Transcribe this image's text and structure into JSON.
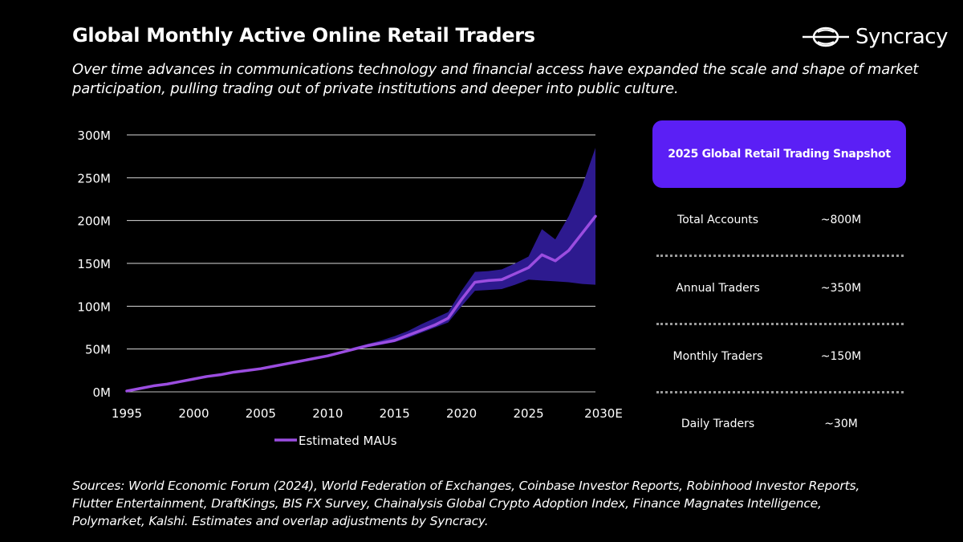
{
  "header": {
    "title": "Global Monthly Active Online Retail Traders",
    "subtitle": "Over time advances in communications technology and financial access have expanded the scale and shape of market participation, pulling trading out of private institutions and deeper into public culture.",
    "logo_text": "Syncracy"
  },
  "snapshot": {
    "title": "2025 Global Retail Trading Snapshot",
    "items": [
      {
        "label": "Total Accounts",
        "value": "~800M"
      },
      {
        "label": "Annual Traders",
        "value": "~350M"
      },
      {
        "label": "Monthly Traders",
        "value": "~150M"
      },
      {
        "label": "Daily Traders",
        "value": "~30M"
      }
    ]
  },
  "sources": "Sources: World Economic Forum (2024), World Federation of Exchanges, Coinbase Investor Reports, Robinhood Investor Reports, Flutter Entertainment, DraftKings, BIS FX Survey, Chainalysis Global Crypto Adoption Index, Finance Magnates Intelligence, Polymarket, Kalshi. Estimates and overlap adjustments by Syncracy.",
  "colors": {
    "background": "#000000",
    "line": "#9b4de0",
    "band": "#2d1a8f",
    "accent": "#5b1ff5",
    "grid": "#d9d9d9"
  },
  "chart_data": {
    "type": "line",
    "title": "",
    "xlabel": "",
    "ylabel": "",
    "x": [
      1995,
      1996,
      1997,
      1998,
      1999,
      2000,
      2001,
      2002,
      2003,
      2004,
      2005,
      2006,
      2007,
      2008,
      2009,
      2010,
      2011,
      2012,
      2013,
      2014,
      2015,
      2016,
      2017,
      2018,
      2019,
      2020,
      2021,
      2022,
      2023,
      2024,
      2025,
      2026,
      2027,
      2028,
      2029,
      2030
    ],
    "x_tick_labels": [
      "1995",
      "2000",
      "2005",
      "2010",
      "2015",
      "2020",
      "2025",
      "2030E"
    ],
    "x_tick_values": [
      1995,
      2000,
      2005,
      2010,
      2015,
      2020,
      2025,
      2030
    ],
    "xlim": [
      1995,
      2030
    ],
    "ylim": [
      0,
      300
    ],
    "y_unit": "millions",
    "y_ticks": [
      0,
      50,
      100,
      150,
      200,
      250,
      300
    ],
    "y_tick_labels": [
      "0M",
      "50M",
      "100M",
      "150M",
      "200M",
      "250M",
      "300M"
    ],
    "grid": true,
    "legend_position": "bottom",
    "series": [
      {
        "name": "Estimated MAUs",
        "values": [
          1,
          4,
          7,
          9,
          12,
          15,
          18,
          20,
          23,
          25,
          27,
          30,
          33,
          36,
          39,
          42,
          46,
          50,
          54,
          57,
          60,
          66,
          72,
          78,
          86,
          108,
          128,
          130,
          131,
          138,
          145,
          160,
          153,
          165,
          185,
          205
        ]
      }
    ],
    "uncertainty_band": {
      "upper": [
        1,
        4,
        7,
        9,
        12,
        15,
        18,
        20,
        23,
        26,
        28,
        31,
        34,
        37,
        40,
        43,
        47,
        52,
        56,
        60,
        65,
        71,
        79,
        86,
        93,
        118,
        140,
        141,
        143,
        150,
        158,
        190,
        178,
        205,
        240,
        285
      ],
      "lower": [
        1,
        4,
        7,
        9,
        12,
        15,
        18,
        20,
        23,
        24,
        26,
        29,
        32,
        35,
        38,
        41,
        45,
        49,
        52,
        55,
        58,
        63,
        69,
        75,
        81,
        100,
        118,
        119,
        120,
        125,
        131,
        130,
        129,
        128,
        126,
        125
      ]
    }
  }
}
